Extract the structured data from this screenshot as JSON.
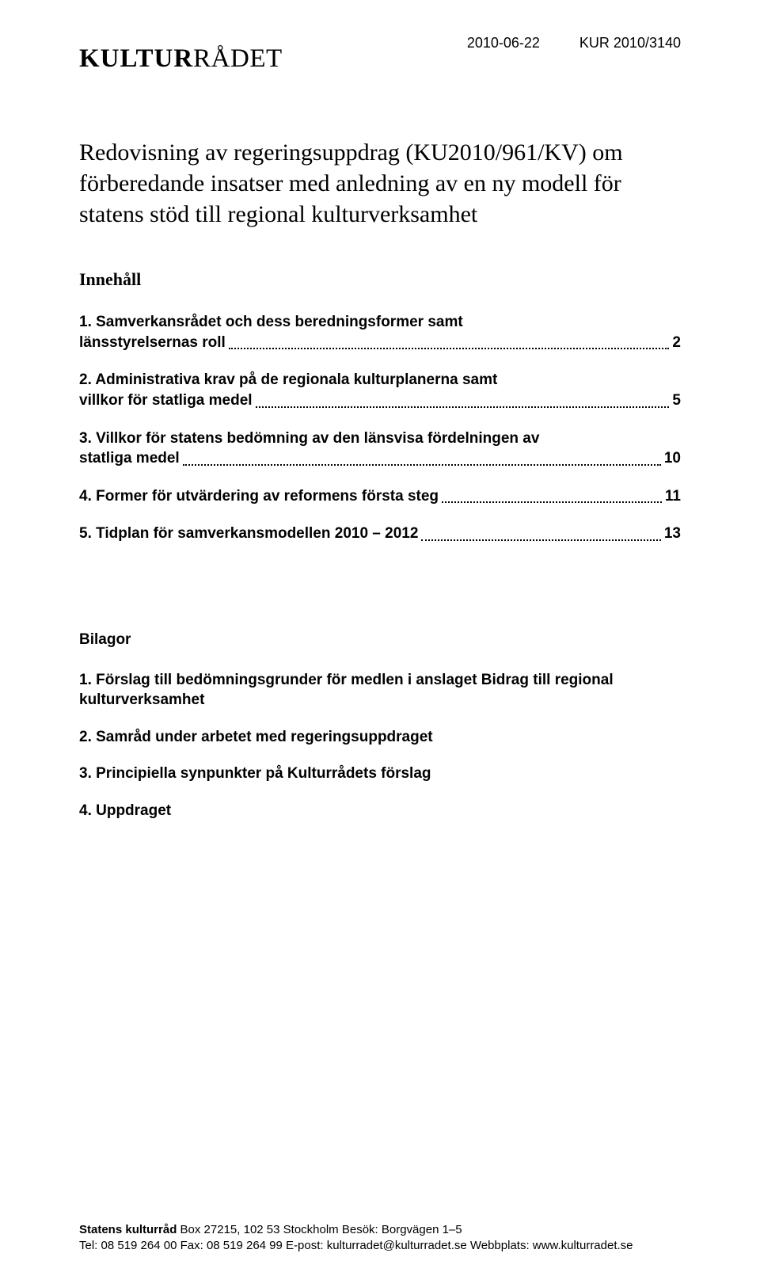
{
  "header": {
    "logo_bold": "KULTUR",
    "logo_light": "RÅDET",
    "date": "2010-06-22",
    "ref": "KUR 2010/3140"
  },
  "title": "Redovisning av regeringsuppdrag (KU2010/961/KV) om förberedande insatser med anledning av en ny modell för statens stöd till regional kulturverksamhet",
  "innehall_label": "Innehåll",
  "toc": [
    {
      "label_lines": [
        "1. Samverkansrådet och dess beredningsformer samt",
        "länsstyrelsernas roll"
      ],
      "page": "2"
    },
    {
      "label_lines": [
        "2. Administrativa krav på de regionala kulturplanerna samt",
        "villkor för statliga medel"
      ],
      "page": "5"
    },
    {
      "label_lines": [
        "3. Villkor för statens bedömning av den länsvisa fördelningen av",
        "statliga medel"
      ],
      "page": "10"
    },
    {
      "label_lines": [
        "4. Former för utvärdering av reformens första steg"
      ],
      "page": "11"
    },
    {
      "label_lines": [
        "5. Tidplan för samverkansmodellen 2010 – 2012"
      ],
      "page": "13"
    }
  ],
  "appendix": {
    "heading": "Bilagor",
    "items": [
      "1. Förslag till bedömningsgrunder för medlen i anslaget Bidrag till regional kulturverksamhet",
      "2. Samråd under arbetet med regeringsuppdraget",
      "3. Principiella synpunkter på Kulturrådets förslag",
      "4. Uppdraget"
    ]
  },
  "footer": {
    "org": "Statens kulturråd",
    "line1_rest": "  Box 27215, 102 53 Stockholm  Besök: Borgvägen 1–5",
    "line2": "Tel: 08 519 264 00  Fax: 08 519 264 99  E-post: kulturradet@kulturradet.se  Webbplats: www.kulturradet.se"
  }
}
